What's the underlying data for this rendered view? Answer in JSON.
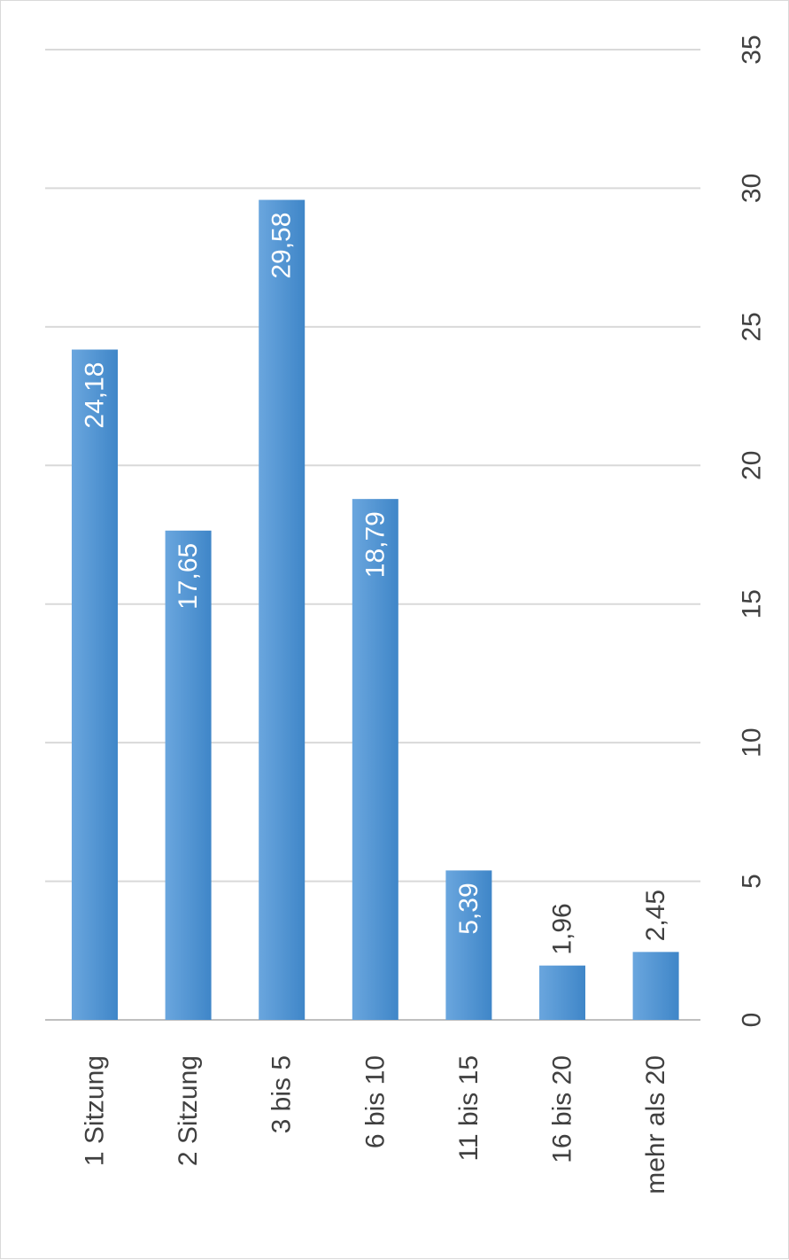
{
  "chart_data": {
    "type": "bar",
    "orientation": "vertical",
    "image_rotation": "rotated 90 degrees clockwise",
    "categories": [
      "1 Sitzung",
      "2 Sitzung",
      "3 bis 5",
      "6 bis 10",
      "11 bis 15",
      "16 bis 20",
      "mehr als 20"
    ],
    "values": [
      24.18,
      17.65,
      29.58,
      18.79,
      5.39,
      1.96,
      2.45
    ],
    "value_labels": [
      "24,18",
      "17,65",
      "29,58",
      "18,79",
      "5,39",
      "1,96",
      "2,45"
    ],
    "value_label_position": [
      "inside",
      "inside",
      "inside",
      "inside",
      "inside",
      "outside",
      "outside"
    ],
    "ylim": [
      0,
      35
    ],
    "ticks": [
      0,
      5,
      10,
      15,
      20,
      25,
      30,
      35
    ],
    "tick_labels": [
      "0",
      "5",
      "10",
      "15",
      "20",
      "25",
      "30",
      "35"
    ],
    "grid": true,
    "legend": "none",
    "colors": {
      "bar": "#5b9bd5",
      "bar_light": "#6aa6de",
      "bar_dark": "#3f86c8",
      "value_label_inside": "#ffffff",
      "value_label_outside": "#404040",
      "axis_text": "#404040",
      "gridline": "#d9d9d9",
      "axis_line": "#bfbfbf"
    }
  }
}
